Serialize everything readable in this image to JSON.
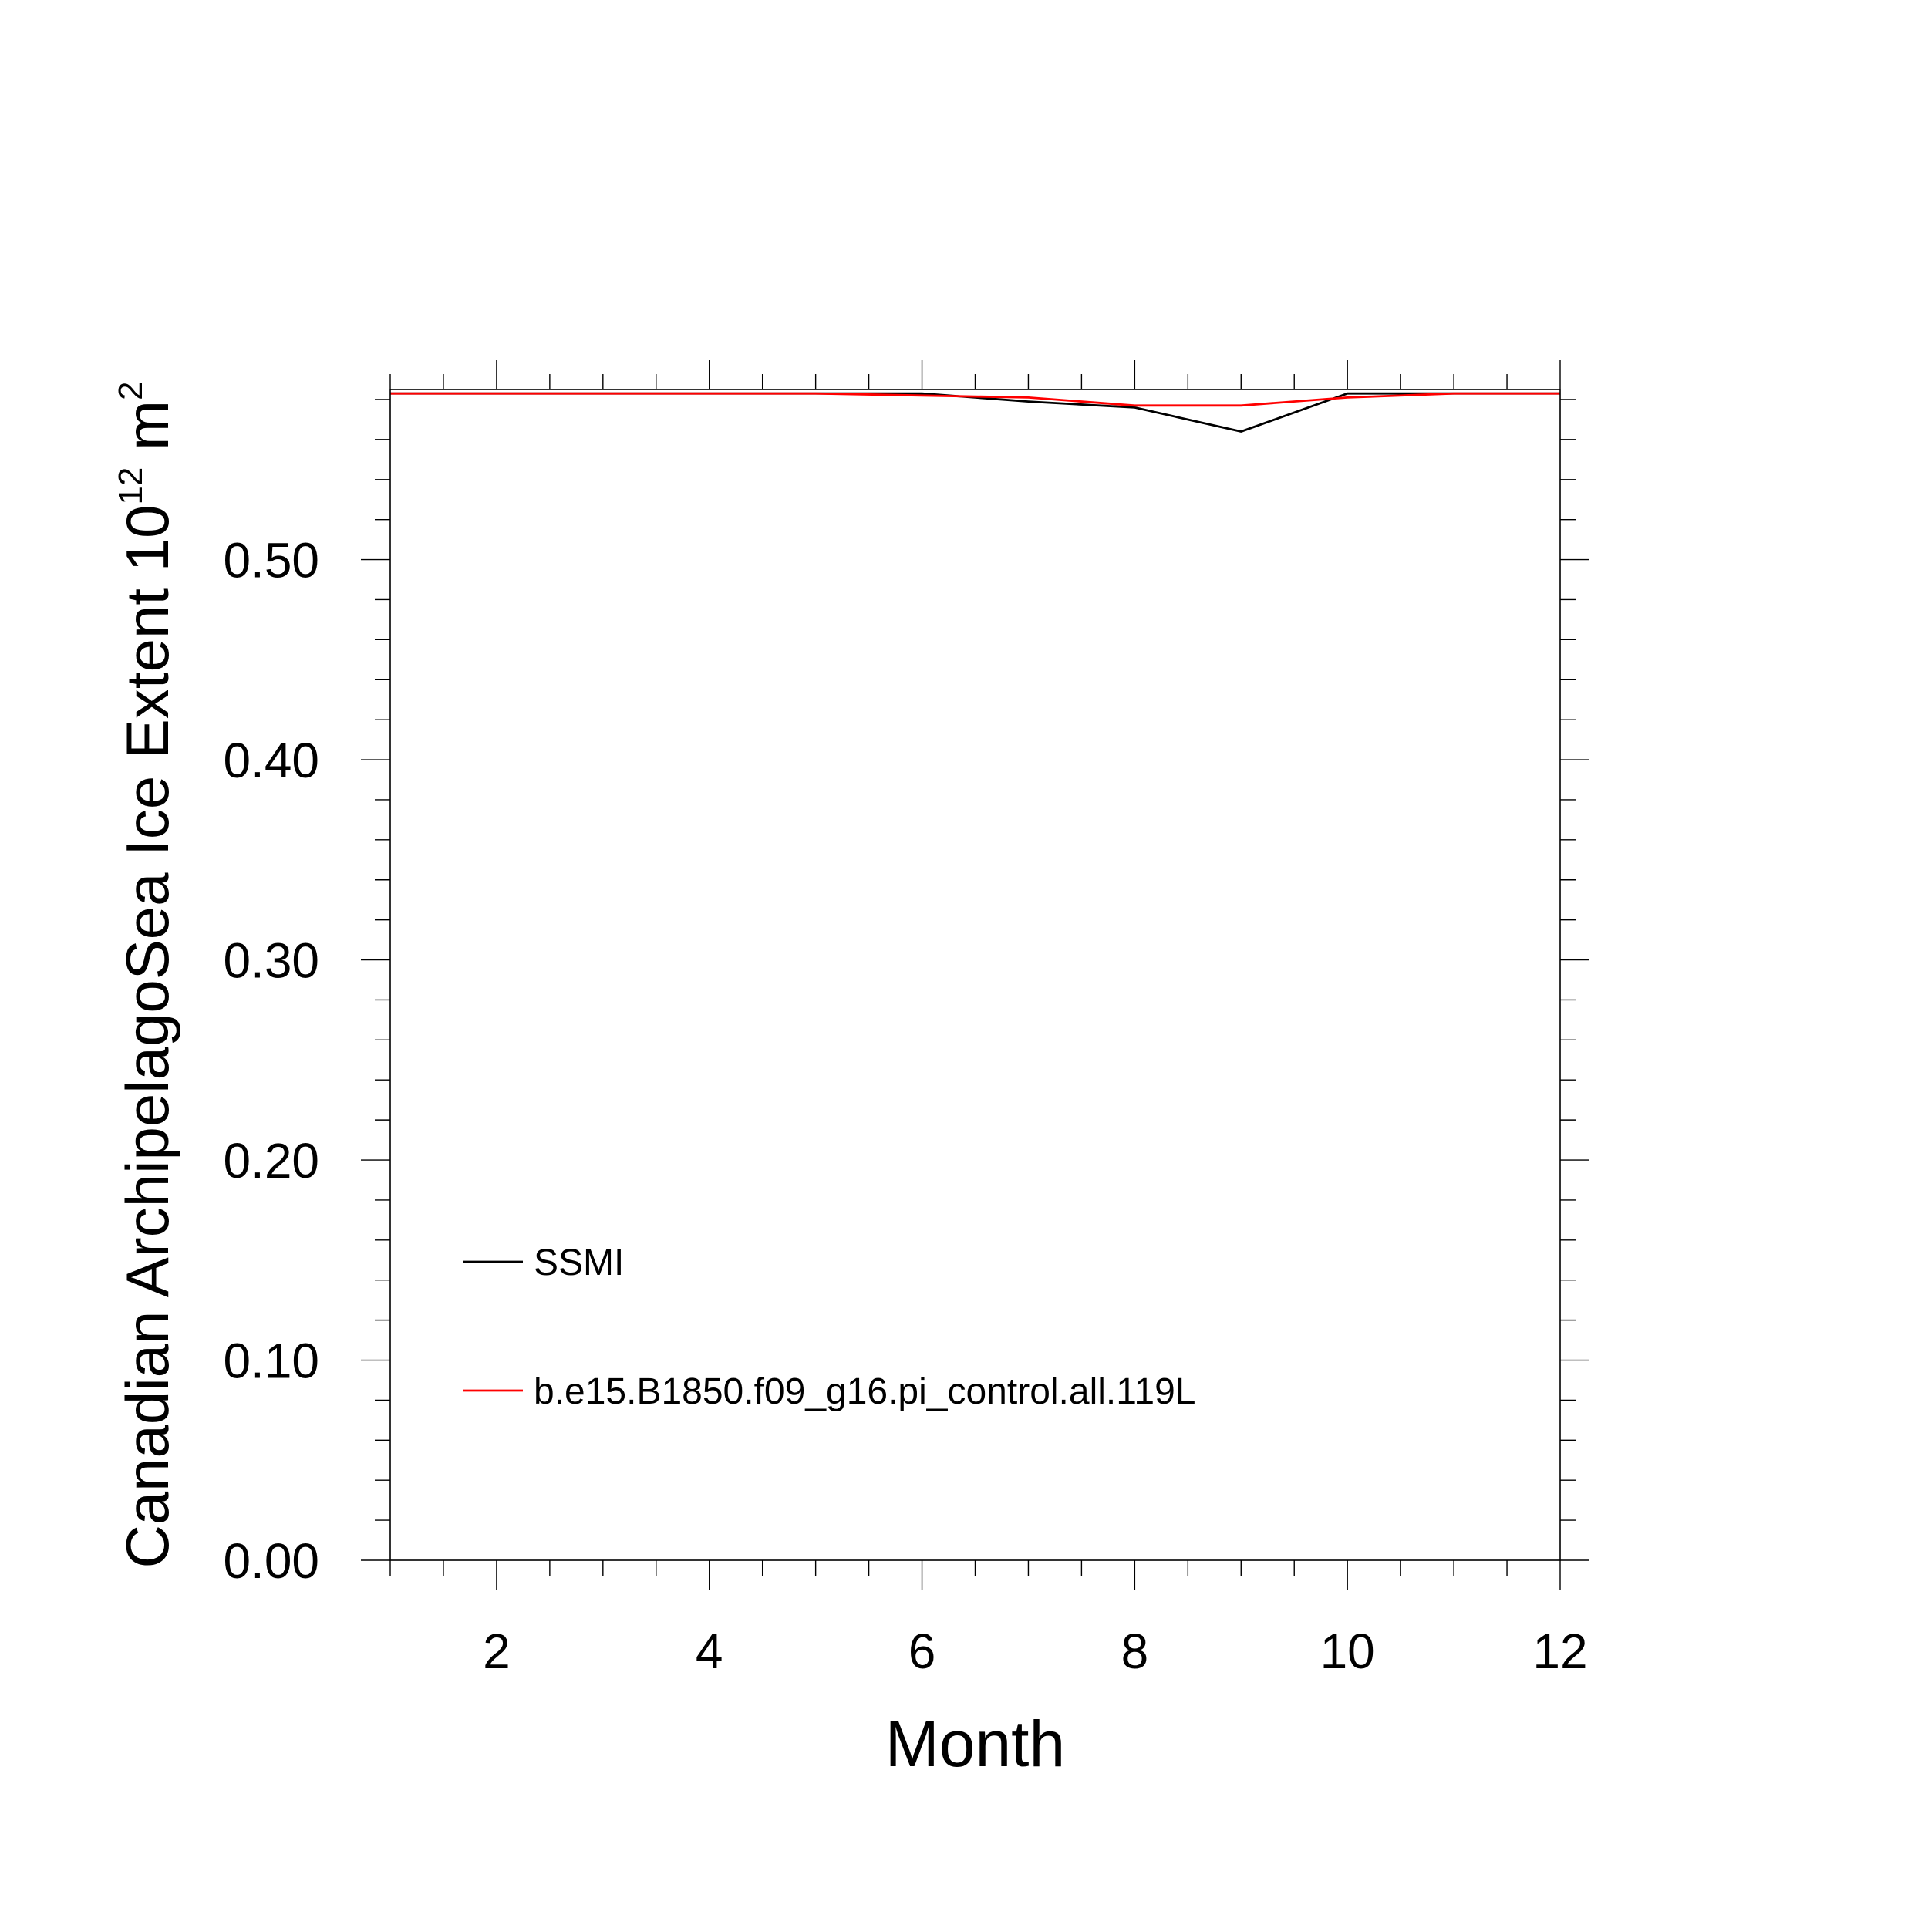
{
  "chart_data": {
    "type": "line",
    "xlabel": "Month",
    "ylabel": {
      "text": "Canadian ArchipelagoSea Ice Extent 10",
      "superscript": "12",
      "unit": " m",
      "unit_superscript": "2"
    },
    "xlim": [
      1,
      12
    ],
    "ylim": [
      0,
      0.585
    ],
    "x_ticks": [
      2,
      4,
      6,
      8,
      10,
      12
    ],
    "x_tick_labels": [
      "2",
      "4",
      "6",
      "8",
      "10",
      "12"
    ],
    "y_ticks": [
      0.0,
      0.1,
      0.2,
      0.3,
      0.4,
      0.5
    ],
    "y_tick_labels": [
      "0.00",
      "0.10",
      "0.20",
      "0.30",
      "0.40",
      "0.50"
    ],
    "grid": false,
    "legend_position": "bottom-left",
    "x": [
      1,
      2,
      3,
      4,
      5,
      6,
      7,
      8,
      9,
      10,
      11,
      12
    ],
    "series": [
      {
        "name": "SSMI",
        "color": "#000000",
        "values": [
          0.583,
          0.583,
          0.583,
          0.583,
          0.583,
          0.583,
          0.579,
          0.576,
          0.564,
          0.583,
          0.583,
          0.583
        ]
      },
      {
        "name": "b.e15.B1850.f09_g16.pi_control.all.119L",
        "color": "#ff0000",
        "values": [
          0.583,
          0.583,
          0.583,
          0.583,
          0.583,
          0.582,
          0.581,
          0.577,
          0.577,
          0.581,
          0.583,
          0.583
        ]
      }
    ]
  }
}
